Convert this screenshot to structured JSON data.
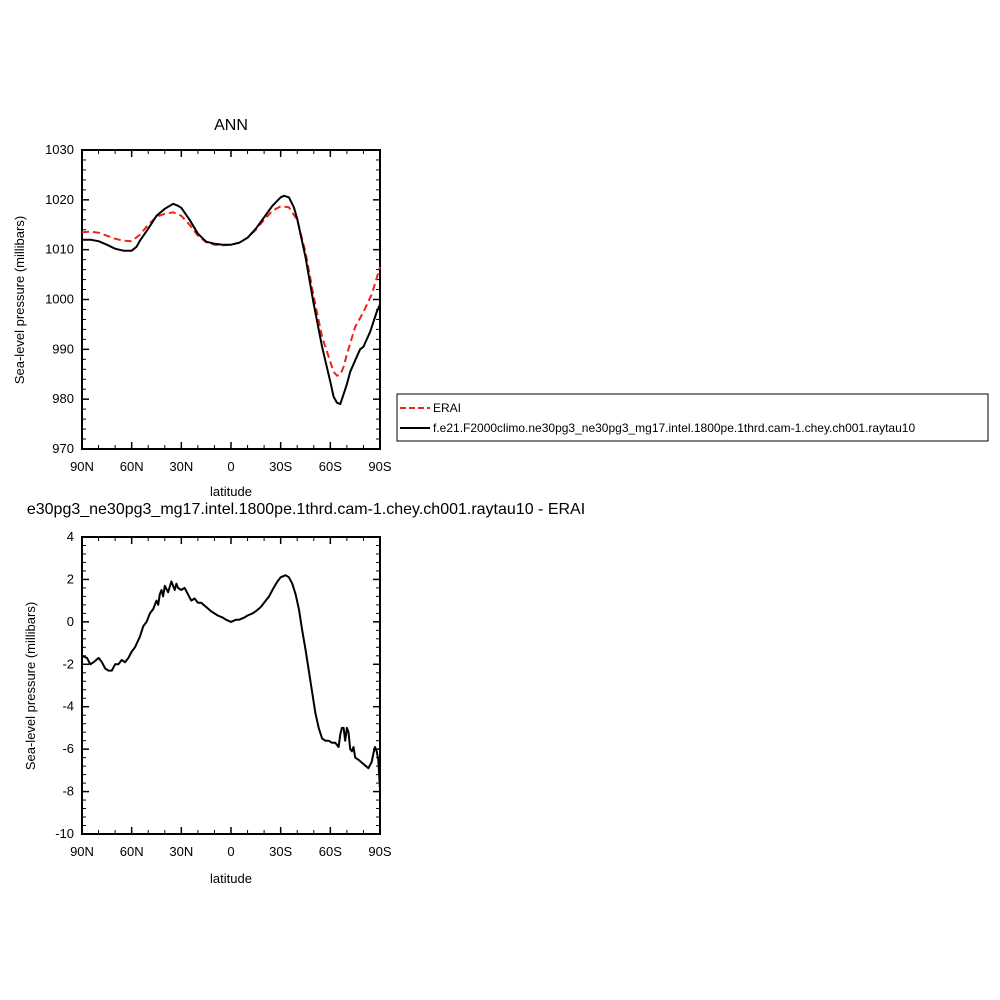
{
  "panels": [
    {
      "title": "ANN",
      "xlabel": "latitude",
      "ylabel": "Sea-level pressure (millibars)"
    },
    {
      "title": "e30pg3_ne30pg3_mg17.intel.1800pe.1thrd.cam-1.chey.ch001.raytau10 - ERAI",
      "xlabel": "latitude",
      "ylabel": "Sea-level pressure (millibars)"
    }
  ],
  "legend": {
    "items": [
      {
        "label": "ERAI",
        "color": "#e8261c",
        "dash": true
      },
      {
        "label": "f.e21.F2000climo.ne30pg3_ne30pg3_mg17.intel.1800pe.1thrd.cam-1.chey.ch001.raytau10",
        "color": "#000000",
        "dash": false
      }
    ]
  },
  "chart_data": [
    {
      "type": "line",
      "title": "ANN",
      "xlabel": "latitude",
      "ylabel": "Sea-level pressure (millibars)",
      "xlim": [
        90,
        -90
      ],
      "ylim": [
        970,
        1030
      ],
      "xticks": [
        90,
        60,
        30,
        0,
        -30,
        -60,
        -90
      ],
      "xtick_labels": [
        "90N",
        "60N",
        "30N",
        "0",
        "30S",
        "60S",
        "90S"
      ],
      "yticks": [
        970,
        980,
        990,
        1000,
        1010,
        1020,
        1030
      ],
      "ytick_labels": [
        "970",
        "980",
        "990",
        "1000",
        "1010",
        "1020",
        "1030"
      ],
      "legend_position": "right",
      "series": [
        {
          "name": "ERAI",
          "color": "#e8261c",
          "dash": true,
          "x": [
            90,
            85,
            80,
            75,
            70,
            65,
            60,
            55,
            50,
            45,
            40,
            35,
            30,
            25,
            20,
            15,
            10,
            5,
            0,
            -5,
            -10,
            -15,
            -20,
            -25,
            -30,
            -35,
            -40,
            -45,
            -50,
            -55,
            -60,
            -62,
            -64,
            -66,
            -68,
            -70,
            -75,
            -80,
            -85,
            -90
          ],
          "y": [
            1013.5,
            1013.6,
            1013.4,
            1012.8,
            1012.2,
            1011.8,
            1011.7,
            1013.0,
            1015.0,
            1016.6,
            1017.2,
            1017.5,
            1016.8,
            1015.0,
            1012.8,
            1011.5,
            1011.0,
            1010.9,
            1011.0,
            1011.4,
            1012.4,
            1014.0,
            1016.0,
            1017.8,
            1018.7,
            1018.5,
            1016.0,
            1009.5,
            1000.5,
            992.5,
            987.5,
            985.5,
            984.7,
            984.9,
            986.5,
            989.0,
            994.5,
            997.5,
            1001.0,
            1006.5
          ]
        },
        {
          "name": "f.e21.F2000climo.ne30pg3_ne30pg3_mg17.intel.1800pe.1thrd.cam-1.chey.ch001.raytau10",
          "color": "#000000",
          "dash": false,
          "x": [
            90,
            85,
            80,
            75,
            70,
            65,
            60,
            57,
            55,
            50,
            45,
            40,
            38,
            35,
            32,
            30,
            25,
            20,
            15,
            10,
            5,
            0,
            -5,
            -10,
            -15,
            -20,
            -25,
            -30,
            -32,
            -35,
            -38,
            -40,
            -45,
            -50,
            -55,
            -60,
            -62,
            -64,
            -66,
            -68,
            -70,
            -72,
            -75,
            -78,
            -80,
            -84,
            -86,
            -88,
            -90
          ],
          "y": [
            1012.0,
            1012.0,
            1011.7,
            1011.0,
            1010.2,
            1009.8,
            1009.8,
            1010.6,
            1011.8,
            1014.2,
            1016.8,
            1018.2,
            1018.6,
            1019.2,
            1018.8,
            1018.4,
            1016.0,
            1013.2,
            1011.6,
            1011.2,
            1011.0,
            1011.0,
            1011.4,
            1012.4,
            1014.2,
            1016.5,
            1018.8,
            1020.5,
            1020.8,
            1020.5,
            1018.5,
            1016.2,
            1008.5,
            999.0,
            990.5,
            983.5,
            980.5,
            979.3,
            979.0,
            981.0,
            983.0,
            985.5,
            987.8,
            990.0,
            990.5,
            993.5,
            995.5,
            997.5,
            999.0
          ]
        }
      ]
    },
    {
      "type": "line",
      "title": "e30pg3_ne30pg3_mg17.intel.1800pe.1thrd.cam-1.chey.ch001.raytau10 - ERAI",
      "xlabel": "latitude",
      "ylabel": "Sea-level pressure (millibars)",
      "xlim": [
        90,
        -90
      ],
      "ylim": [
        -10,
        4
      ],
      "xticks": [
        90,
        60,
        30,
        0,
        -30,
        -60,
        -90
      ],
      "xtick_labels": [
        "90N",
        "60N",
        "30N",
        "0",
        "30S",
        "60S",
        "90S"
      ],
      "yticks": [
        -10,
        -8,
        -6,
        -4,
        -2,
        0,
        2,
        4
      ],
      "ytick_labels": [
        "-10",
        "-8",
        "-6",
        "-4",
        "-2",
        "0",
        "2",
        "4"
      ],
      "series": [
        {
          "color": "#000000",
          "dash": false,
          "x": [
            90,
            87,
            85,
            83,
            80,
            78,
            76,
            74,
            72,
            70,
            68,
            66,
            64,
            62,
            60,
            58,
            55,
            53,
            51,
            49,
            47,
            45,
            44,
            43,
            42,
            41,
            40,
            38,
            36,
            35,
            34,
            33,
            32,
            30,
            28,
            26,
            24,
            22,
            20,
            18,
            15,
            12,
            10,
            8,
            5,
            3,
            0,
            -3,
            -5,
            -8,
            -10,
            -13,
            -15,
            -18,
            -20,
            -23,
            -25,
            -28,
            -30,
            -33,
            -35,
            -37,
            -39,
            -41,
            -43,
            -45,
            -47,
            -49,
            -51,
            -53,
            -55,
            -57,
            -59,
            -61,
            -63,
            -65,
            -66,
            -67,
            -68,
            -69,
            -70,
            -71,
            -72,
            -73,
            -74,
            -75,
            -77,
            -80,
            -83,
            -85,
            -86,
            -87,
            -88,
            -89,
            -90
          ],
          "y": [
            -1.6,
            -1.7,
            -2.0,
            -1.9,
            -1.7,
            -1.9,
            -2.2,
            -2.3,
            -2.3,
            -2.0,
            -2.0,
            -1.8,
            -1.9,
            -1.7,
            -1.4,
            -1.2,
            -0.7,
            -0.2,
            0.0,
            0.4,
            0.6,
            1.0,
            0.8,
            1.3,
            1.5,
            1.2,
            1.7,
            1.4,
            1.9,
            1.7,
            1.5,
            1.8,
            1.6,
            1.5,
            1.6,
            1.3,
            1.0,
            1.1,
            0.9,
            0.9,
            0.7,
            0.5,
            0.4,
            0.3,
            0.2,
            0.1,
            0.0,
            0.1,
            0.1,
            0.2,
            0.3,
            0.4,
            0.5,
            0.7,
            0.9,
            1.2,
            1.5,
            1.9,
            2.1,
            2.2,
            2.1,
            1.8,
            1.3,
            0.6,
            -0.4,
            -1.3,
            -2.3,
            -3.3,
            -4.3,
            -5.0,
            -5.5,
            -5.6,
            -5.6,
            -5.7,
            -5.7,
            -5.9,
            -5.3,
            -5.0,
            -5.0,
            -5.6,
            -5.0,
            -5.2,
            -6.0,
            -6.1,
            -5.9,
            -6.4,
            -6.5,
            -6.7,
            -6.9,
            -6.6,
            -6.2,
            -5.9,
            -6.1,
            -6.5,
            -7.9
          ]
        }
      ]
    }
  ]
}
